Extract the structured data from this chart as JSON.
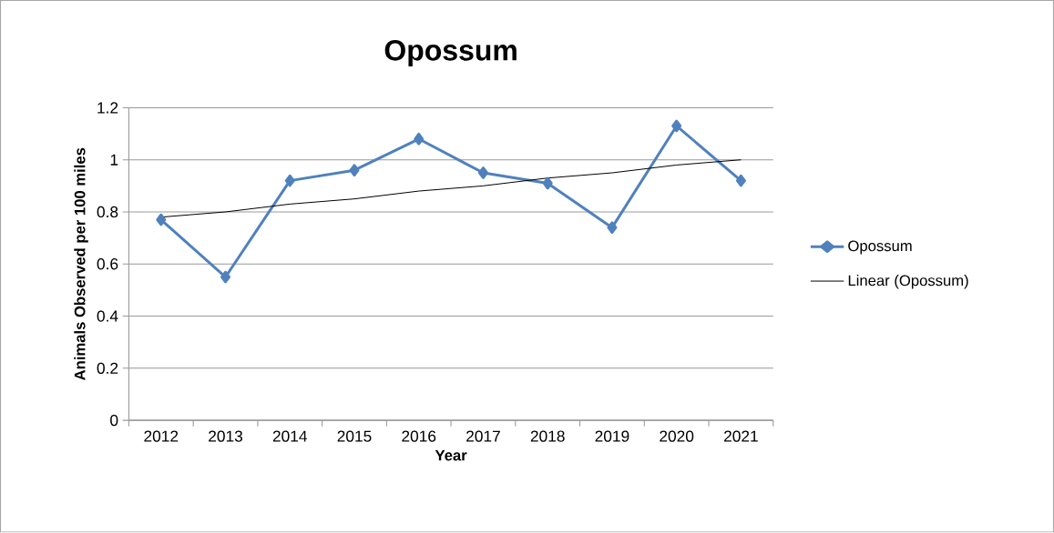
{
  "chart_data": {
    "type": "line",
    "title": "Opossum",
    "xlabel": "Year",
    "ylabel": "Animals Observed per 100 miles",
    "categories": [
      "2012",
      "2013",
      "2014",
      "2015",
      "2016",
      "2017",
      "2018",
      "2019",
      "2020",
      "2021"
    ],
    "series": [
      {
        "name": "Opossum",
        "color": "#4f81bd",
        "values": [
          0.77,
          0.55,
          0.92,
          0.96,
          1.08,
          0.95,
          0.91,
          0.74,
          1.13,
          0.92
        ]
      },
      {
        "name": "Linear (Opossum)",
        "type": "line",
        "color": "#000000",
        "marker": "none",
        "values": [
          0.78,
          0.8,
          0.83,
          0.85,
          0.88,
          0.9,
          0.93,
          0.95,
          0.98,
          1.0
        ]
      }
    ],
    "ylim": [
      0,
      1.2
    ],
    "yticks": [
      0,
      0.2,
      0.4,
      0.6,
      0.8,
      1,
      1.2
    ],
    "grid": "y",
    "legend": "right",
    "marker": "diamond"
  }
}
